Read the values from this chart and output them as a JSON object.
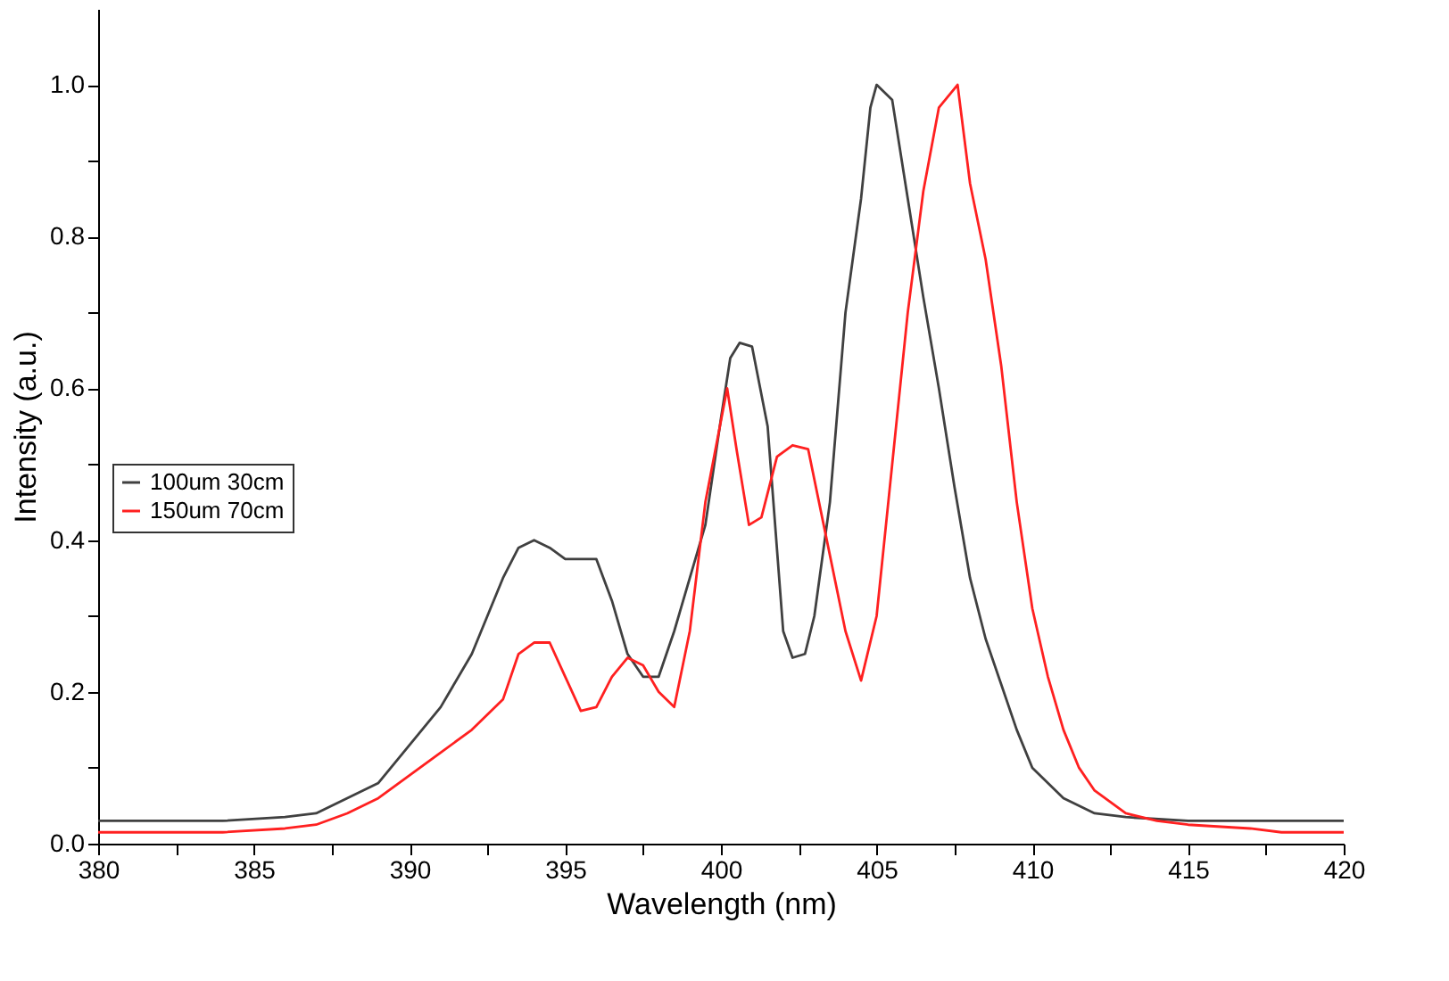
{
  "chart_data": {
    "type": "line",
    "xlabel": "Wavelength (nm)",
    "ylabel": "Intensity (a.u.)",
    "xlim": [
      380,
      420
    ],
    "ylim": [
      0,
      1.1
    ],
    "xticks": [
      380,
      {
        "value": 382.5,
        "label": null
      },
      385,
      {
        "value": 387.5,
        "label": null
      },
      390,
      {
        "value": 392.5,
        "label": null
      },
      395,
      {
        "value": 397.5,
        "label": null
      },
      400,
      {
        "value": 402.5,
        "label": null
      },
      405,
      {
        "value": 407.5,
        "label": null
      },
      410,
      {
        "value": 412.5,
        "label": null
      },
      415,
      {
        "value": 417.5,
        "label": null
      },
      420
    ],
    "yticks": [
      {
        "value": 0,
        "label": "0.0"
      },
      {
        "value": 0.1,
        "label": null
      },
      {
        "value": 0.2,
        "label": "0.2"
      },
      {
        "value": 0.3,
        "label": null
      },
      {
        "value": 0.4,
        "label": "0.4"
      },
      {
        "value": 0.5,
        "label": null
      },
      {
        "value": 0.6,
        "label": "0.6"
      },
      {
        "value": 0.7,
        "label": null
      },
      {
        "value": 0.8,
        "label": "0.8"
      },
      {
        "value": 0.9,
        "label": null
      },
      {
        "value": 1.0,
        "label": "1.0"
      }
    ],
    "grid": false,
    "legend": "left",
    "marker": "none",
    "line_style": "solid",
    "series": [
      {
        "name": "100um 30cm",
        "color": "#404040",
        "x": [
          380,
          382,
          384,
          386,
          387,
          388,
          389,
          390,
          391,
          392,
          392.5,
          393,
          393.5,
          394,
          394.5,
          395,
          395.5,
          396,
          396.5,
          397,
          397.5,
          398,
          398.5,
          399,
          399.5,
          400,
          400.3,
          400.6,
          401,
          401.5,
          402,
          402.3,
          402.7,
          403,
          403.5,
          404,
          404.5,
          404.8,
          405,
          405.5,
          406,
          406.5,
          407,
          407.5,
          408,
          408.5,
          409,
          409.5,
          410,
          411,
          412,
          413,
          415,
          417,
          420
        ],
        "values": [
          0.03,
          0.03,
          0.03,
          0.035,
          0.04,
          0.06,
          0.08,
          0.13,
          0.18,
          0.25,
          0.3,
          0.35,
          0.39,
          0.4,
          0.39,
          0.375,
          0.375,
          0.375,
          0.32,
          0.25,
          0.22,
          0.22,
          0.28,
          0.35,
          0.42,
          0.56,
          0.64,
          0.66,
          0.655,
          0.55,
          0.28,
          0.245,
          0.25,
          0.3,
          0.45,
          0.7,
          0.85,
          0.97,
          1.0,
          0.98,
          0.85,
          0.72,
          0.6,
          0.47,
          0.35,
          0.27,
          0.21,
          0.15,
          0.1,
          0.06,
          0.04,
          0.035,
          0.03,
          0.03,
          0.03
        ]
      },
      {
        "name": "150um 70cm",
        "color": "#ff2020",
        "x": [
          380,
          382,
          384,
          386,
          387,
          388,
          389,
          390,
          391,
          392,
          393,
          393.5,
          394,
          394.5,
          395,
          395.5,
          396,
          396.5,
          397,
          397.5,
          398,
          398.5,
          399,
          399.5,
          400.2,
          400.5,
          400.9,
          401.3,
          401.8,
          402.3,
          402.8,
          403.3,
          404,
          404.5,
          405,
          405.5,
          406,
          406.5,
          407,
          407.6,
          408,
          408.5,
          409,
          409.5,
          410,
          410.5,
          411,
          411.5,
          412,
          413,
          414,
          415,
          417,
          418,
          420
        ],
        "values": [
          0.015,
          0.015,
          0.015,
          0.02,
          0.025,
          0.04,
          0.06,
          0.09,
          0.12,
          0.15,
          0.19,
          0.25,
          0.265,
          0.265,
          0.22,
          0.175,
          0.18,
          0.22,
          0.245,
          0.235,
          0.2,
          0.18,
          0.28,
          0.45,
          0.6,
          0.52,
          0.42,
          0.43,
          0.51,
          0.525,
          0.52,
          0.42,
          0.28,
          0.215,
          0.3,
          0.5,
          0.7,
          0.86,
          0.97,
          1.0,
          0.87,
          0.77,
          0.63,
          0.45,
          0.31,
          0.22,
          0.15,
          0.1,
          0.07,
          0.04,
          0.03,
          0.025,
          0.02,
          0.015,
          0.015
        ]
      }
    ]
  }
}
